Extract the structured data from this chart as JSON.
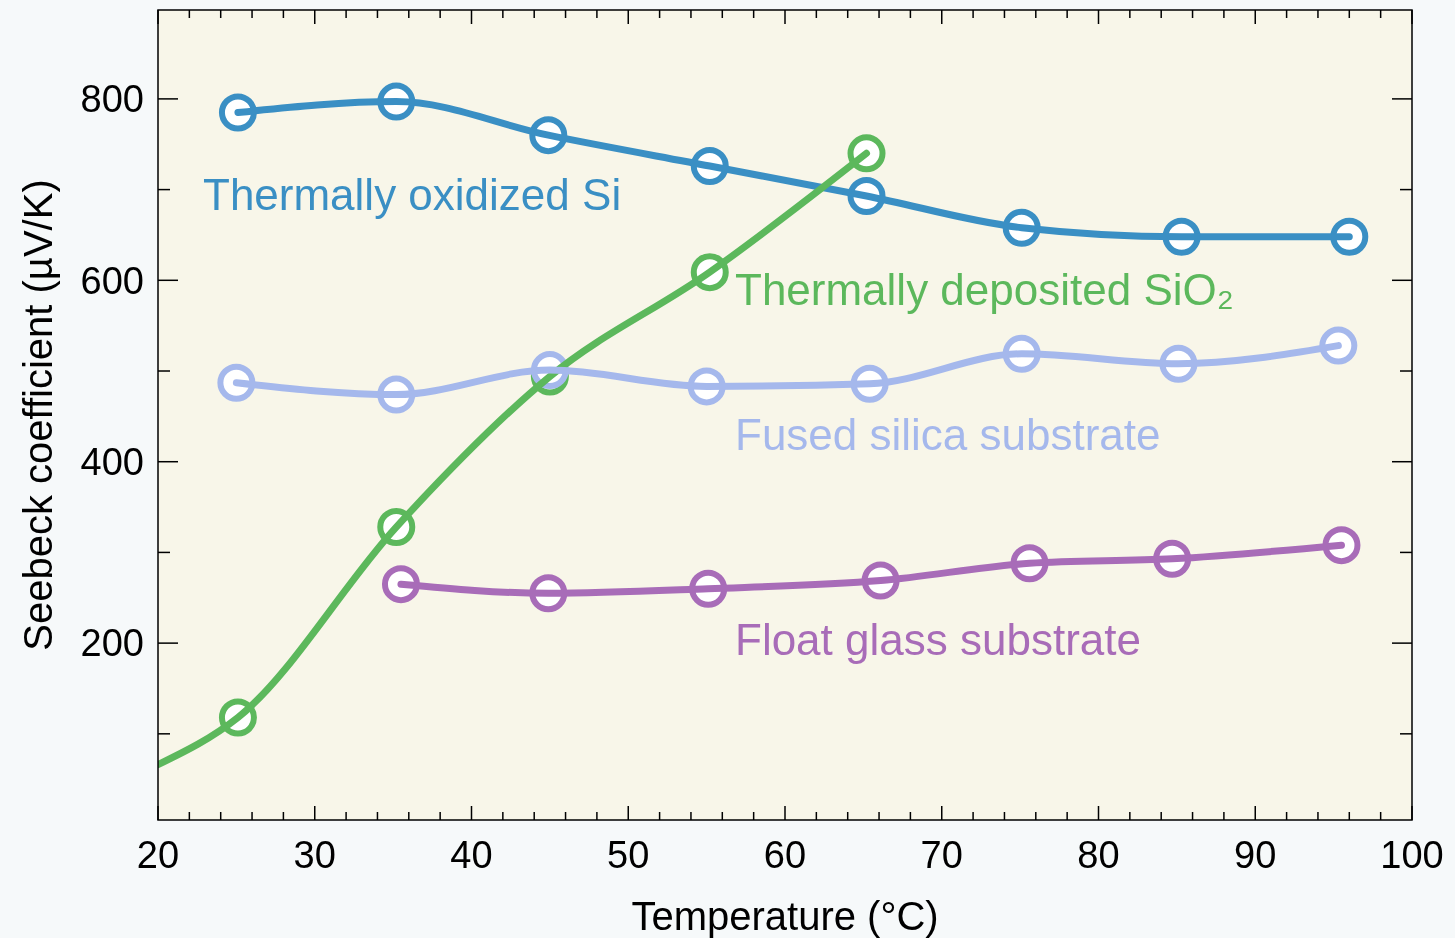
{
  "chart_data": {
    "type": "line",
    "xlabel": "Temperature (°C)",
    "ylabel": "Seebeck coefficient (µV/K)",
    "xlim": [
      20,
      100
    ],
    "ylim": [
      5,
      898
    ],
    "xticks": [
      20,
      {
        "value": 22,
        "label": null
      },
      {
        "value": 24,
        "label": null
      },
      {
        "value": 26,
        "label": null
      },
      {
        "value": 28,
        "label": null
      },
      30,
      {
        "value": 32,
        "label": null
      },
      {
        "value": 34,
        "label": null
      },
      {
        "value": 36,
        "label": null
      },
      {
        "value": 38,
        "label": null
      },
      40,
      {
        "value": 42,
        "label": null
      },
      {
        "value": 44,
        "label": null
      },
      {
        "value": 46,
        "label": null
      },
      {
        "value": 48,
        "label": null
      },
      50,
      {
        "value": 52,
        "label": null
      },
      {
        "value": 54,
        "label": null
      },
      {
        "value": 56,
        "label": null
      },
      {
        "value": 58,
        "label": null
      },
      60,
      {
        "value": 62,
        "label": null
      },
      {
        "value": 64,
        "label": null
      },
      {
        "value": 66,
        "label": null
      },
      {
        "value": 68,
        "label": null
      },
      70,
      {
        "value": 72,
        "label": null
      },
      {
        "value": 74,
        "label": null
      },
      {
        "value": 76,
        "label": null
      },
      {
        "value": 78,
        "label": null
      },
      80,
      {
        "value": 82,
        "label": null
      },
      {
        "value": 84,
        "label": null
      },
      {
        "value": 86,
        "label": null
      },
      {
        "value": 88,
        "label": null
      },
      90,
      {
        "value": 92,
        "label": null
      },
      {
        "value": 94,
        "label": null
      },
      {
        "value": 96,
        "label": null
      },
      {
        "value": 98,
        "label": null
      },
      100
    ],
    "yticks": [
      {
        "value": 100,
        "label": null
      },
      200,
      {
        "value": 300,
        "label": null
      },
      400,
      {
        "value": 500,
        "label": null
      },
      600,
      {
        "value": 700,
        "label": null
      },
      800
    ],
    "grid": false,
    "legend": false,
    "line_style": "solid",
    "series": [
      {
        "name": "Thermally oxidized Si",
        "color": "#3a8fc4",
        "marker": "circle",
        "x": [
          25.1,
          35.2,
          44.9,
          55.2,
          65.2,
          75.1,
          85.3,
          96
        ],
        "values": [
          785,
          797,
          760,
          726,
          693,
          658,
          648,
          648
        ]
      },
      {
        "name": "Thermally deposited SiO₂",
        "color": "#5cb85c",
        "marker": "none",
        "x": [
          20,
          25.1,
          35.2,
          45,
          55.2,
          65.2
        ],
        "values": [
          66,
          118,
          328,
          494,
          609,
          740
        ]
      },
      {
        "color": "#5cb85c",
        "type": "scatter",
        "marker": "circle",
        "x": [
          25.1,
          35.2,
          45,
          55.2,
          65.2
        ],
        "values": [
          118,
          328,
          494,
          609,
          740
        ]
      },
      {
        "name": "Fused silica substrate",
        "color": "#a5b8ec",
        "marker": "circle",
        "x": [
          25,
          35.2,
          45,
          55,
          65.4,
          75.1,
          85.1,
          95.3
        ],
        "values": [
          487,
          474,
          501,
          483,
          486,
          519,
          508,
          528
        ]
      },
      {
        "name": "Float glass substrate",
        "color": "#a86cb8",
        "marker": "circle",
        "x": [
          35.5,
          44.9,
          55.1,
          66.1,
          75.6,
          84.7,
          95.5
        ],
        "values": [
          265,
          255,
          260,
          269,
          288,
          293,
          308
        ]
      }
    ]
  }
}
